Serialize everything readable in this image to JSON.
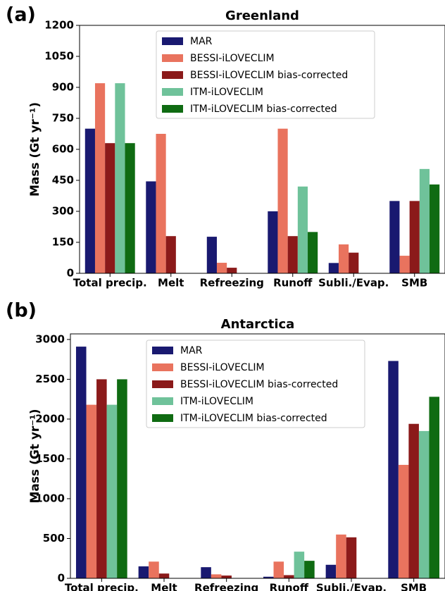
{
  "chart_data": [
    {
      "type": "bar",
      "panel_label": "(a)",
      "title": "Greenland",
      "y_label": "Mass (Gt yr⁻¹)",
      "categories": [
        "Total precip.",
        "Melt",
        "Refreezing",
        "Runoff",
        "Subli./Evap.",
        "SMB"
      ],
      "series": [
        {
          "name": "MAR",
          "color": "#191970",
          "values": [
            700,
            445,
            177,
            300,
            50,
            350
          ]
        },
        {
          "name": "BESSI-iLOVECLIM",
          "color": "#e9735e",
          "values": [
            920,
            675,
            51,
            700,
            140,
            85
          ]
        },
        {
          "name": "BESSI-iLOVECLIM bias-corrected",
          "color": "#8b1a1a",
          "values": [
            630,
            180,
            27,
            180,
            100,
            350
          ]
        },
        {
          "name": "ITM-iLOVECLIM",
          "color": "#6fc29a",
          "values": [
            920,
            null,
            null,
            420,
            null,
            505
          ]
        },
        {
          "name": "ITM-iLOVECLIM bias-corrected",
          "color": "#0f6b12",
          "values": [
            630,
            null,
            null,
            200,
            null,
            430
          ]
        }
      ],
      "ylim": [
        0,
        1200
      ],
      "yticks": [
        0,
        150,
        300,
        450,
        600,
        750,
        900,
        1050,
        1200
      ],
      "legend": "upper center"
    },
    {
      "type": "bar",
      "panel_label": "(b)",
      "title": "Antarctica",
      "y_label": "Mass (Gt yr⁻¹)",
      "categories": [
        "Total precip.",
        "Melt",
        "Refreezing",
        "Runoff",
        "Subli./Evap.",
        "SMB"
      ],
      "series": [
        {
          "name": "MAR",
          "color": "#191970",
          "values": [
            2910,
            150,
            140,
            20,
            170,
            2730
          ]
        },
        {
          "name": "BESSI-iLOVECLIM",
          "color": "#e9735e",
          "values": [
            2180,
            210,
            50,
            210,
            550,
            1425
          ]
        },
        {
          "name": "BESSI-iLOVECLIM bias-corrected",
          "color": "#8b1a1a",
          "values": [
            2500,
            60,
            35,
            40,
            515,
            1940
          ]
        },
        {
          "name": "ITM-iLOVECLIM",
          "color": "#6fc29a",
          "values": [
            2180,
            null,
            null,
            335,
            null,
            1850
          ]
        },
        {
          "name": "ITM-iLOVECLIM bias-corrected",
          "color": "#0f6b12",
          "values": [
            2500,
            null,
            null,
            220,
            null,
            2280
          ]
        }
      ],
      "ylim": [
        0,
        3070
      ],
      "yticks": [
        0,
        500,
        1000,
        1500,
        2000,
        2500,
        3000
      ],
      "legend": "upper center"
    }
  ]
}
